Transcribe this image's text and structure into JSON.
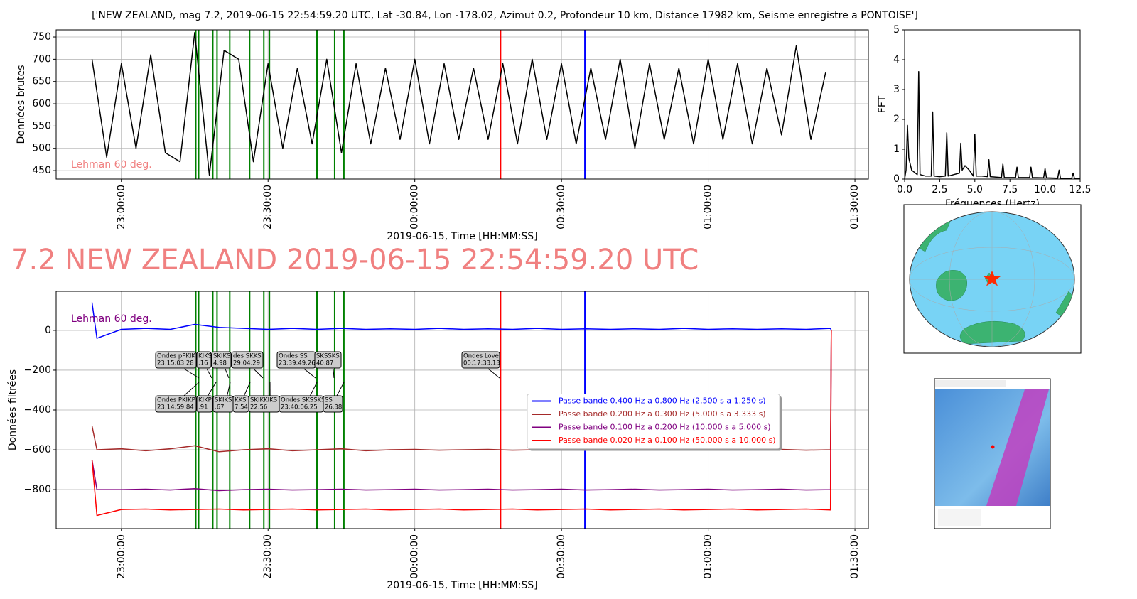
{
  "headline": "7.2 NEW ZEALAND 2019-06-15 22:54:59.20 UTC",
  "chart_data": [
    {
      "type": "line",
      "title": "['NEW ZEALAND, mag 7.2, 2019-06-15 22:54:59.20 UTC, Lat -30.84, Lon -178.02, Azimut 0.2, Profondeur 10 km, Distance 17982 km, Seisme enregistre a PONTOISE']",
      "x_label": "2019-06-15, Time [HH:MM:SS]",
      "y_label": "Données brutes",
      "note": "Lehman 60 deg.",
      "note_color": "#f08080",
      "x": [
        "22:54:00",
        "22:57:00",
        "23:00:00",
        "23:03:00",
        "23:06:00",
        "23:09:00",
        "23:12:00",
        "23:15:00",
        "23:18:00",
        "23:21:00",
        "23:24:00",
        "23:27:00",
        "23:30:00",
        "23:33:00",
        "23:36:00",
        "23:39:00",
        "23:42:00",
        "23:45:00",
        "23:48:00",
        "23:51:00",
        "23:54:00",
        "23:57:00",
        "00:00:00",
        "00:03:00",
        "00:06:00",
        "00:09:00",
        "00:12:00",
        "00:15:00",
        "00:18:00",
        "00:21:00",
        "00:24:00",
        "00:27:00",
        "00:30:00",
        "00:33:00",
        "00:36:00",
        "00:39:00",
        "00:42:00",
        "00:45:00",
        "00:48:00",
        "00:51:00",
        "00:54:00",
        "00:57:00",
        "01:00:00",
        "01:03:00",
        "01:06:00",
        "01:09:00",
        "01:12:00",
        "01:15:00",
        "01:18:00",
        "01:21:00",
        "01:24:00"
      ],
      "values": [
        700,
        480,
        690,
        500,
        710,
        490,
        470,
        760,
        440,
        720,
        700,
        470,
        690,
        500,
        680,
        510,
        700,
        490,
        690,
        510,
        680,
        520,
        700,
        510,
        690,
        520,
        680,
        520,
        690,
        510,
        700,
        520,
        690,
        510,
        680,
        520,
        700,
        500,
        690,
        520,
        680,
        510,
        700,
        520,
        690,
        510,
        680,
        530,
        730,
        520,
        670
      ],
      "color": "#000000",
      "xlim": [
        "22:46:40",
        "01:32:45"
      ],
      "xticks": [
        "23:00:00",
        "23:30:00",
        "00:00:00",
        "00:30:00",
        "01:00:00",
        "01:30:00"
      ],
      "xtick_rotation": 90,
      "ylim": [
        431,
        766
      ],
      "yticks": [
        450,
        500,
        550,
        600,
        650,
        700,
        750
      ],
      "grid": true,
      "markers": [
        {
          "x": "23:15:13",
          "color": "#008000"
        },
        {
          "x": "23:15:48",
          "color": "#008000"
        },
        {
          "x": "23:18:42",
          "color": "#008000"
        },
        {
          "x": "23:19:34",
          "color": "#008000"
        },
        {
          "x": "23:22:10",
          "color": "#008000"
        },
        {
          "x": "23:26:14",
          "color": "#008000"
        },
        {
          "x": "23:29:08",
          "color": "#008000"
        },
        {
          "x": "23:30:17",
          "color": "#008000"
        },
        {
          "x": "23:39:51",
          "color": "#008000"
        },
        {
          "x": "23:40:08",
          "color": "#008000"
        },
        {
          "x": "23:43:37",
          "color": "#008000"
        },
        {
          "x": "23:45:30",
          "color": "#008000"
        },
        {
          "x": "00:17:32",
          "color": "#ff0000"
        },
        {
          "x": "00:34:47",
          "color": "#0000ff"
        }
      ]
    },
    {
      "type": "line",
      "x_label": "Fréquences (Hertz)",
      "y_label": "FFT",
      "x": [
        0,
        0.1,
        0.2,
        0.3,
        0.5,
        0.9,
        1.0,
        1.1,
        1.5,
        1.9,
        2.0,
        2.1,
        2.5,
        2.9,
        3.0,
        3.1,
        3.5,
        3.9,
        4.0,
        4.1,
        4.3,
        4.6,
        4.9,
        5.0,
        5.1,
        5.5,
        5.9,
        6.0,
        6.1,
        6.9,
        7.0,
        7.1,
        7.9,
        8.0,
        8.1,
        8.9,
        9.0,
        9.1,
        9.9,
        10.0,
        10.1,
        10.9,
        11.0,
        11.1,
        11.9,
        12.0,
        12.1,
        12.5
      ],
      "values": [
        0,
        0.3,
        1.8,
        0.7,
        0.3,
        0.15,
        3.6,
        0.15,
        0.1,
        0.1,
        2.25,
        0.1,
        0.08,
        0.1,
        1.55,
        0.1,
        0.15,
        0.2,
        1.2,
        0.3,
        0.45,
        0.3,
        0.1,
        1.5,
        0.1,
        0.1,
        0.08,
        0.65,
        0.08,
        0.05,
        0.5,
        0.05,
        0.05,
        0.4,
        0.05,
        0.05,
        0.4,
        0.05,
        0.04,
        0.35,
        0.04,
        0.03,
        0.3,
        0.03,
        0.02,
        0.2,
        0.02,
        0.02
      ],
      "color": "#000000",
      "xlim": [
        0,
        12.5
      ],
      "xticks": [
        {
          "value": 0,
          "label": "0.0"
        },
        {
          "value": 2.5,
          "label": "2.5"
        },
        {
          "value": 5,
          "label": "5.0"
        },
        {
          "value": 7.5,
          "label": "7.5"
        },
        {
          "value": 10,
          "label": "10.0"
        },
        {
          "value": 12.5,
          "label": "12.5"
        }
      ],
      "ylim": [
        0,
        5
      ],
      "yticks": [
        0,
        1,
        2,
        3,
        4,
        5
      ],
      "grid": false
    },
    {
      "type": "line",
      "x_label": "2019-06-15, Time [HH:MM:SS]",
      "y_label": "Données filtrées",
      "note": "Lehman 60 deg.",
      "note_color": "#800080",
      "x": [
        "22:54:00",
        "22:55:00",
        "23:00:00",
        "23:05:00",
        "23:10:00",
        "23:15:00",
        "23:20:00",
        "23:25:00",
        "23:30:00",
        "23:35:00",
        "23:40:00",
        "23:45:00",
        "23:50:00",
        "23:55:00",
        "00:00:00",
        "00:05:00",
        "00:10:00",
        "00:15:00",
        "00:20:00",
        "00:25:00",
        "00:30:00",
        "00:35:00",
        "00:40:00",
        "00:45:00",
        "00:50:00",
        "00:55:00",
        "01:00:00",
        "01:05:00",
        "01:10:00",
        "01:15:00",
        "01:20:00",
        "01:25:00",
        "01:25:10"
      ],
      "series": [
        {
          "name": "Passe bande 0.400 Hz a 0.800 Hz (2.500 s a 1.250 s)",
          "color": "#0000ff",
          "values": [
            140,
            -40,
            5,
            10,
            5,
            30,
            15,
            10,
            5,
            10,
            5,
            10,
            5,
            8,
            5,
            10,
            5,
            8,
            5,
            10,
            5,
            8,
            5,
            8,
            5,
            10,
            5,
            8,
            5,
            8,
            5,
            10,
            0
          ]
        },
        {
          "name": "Passe bande 0.200 Hz a 0.300 Hz (5.000 s a 3.333 s)",
          "color": "#a52a2a",
          "values": [
            -480,
            -600,
            -595,
            -605,
            -595,
            -580,
            -610,
            -600,
            -595,
            -605,
            -600,
            -595,
            -605,
            -600,
            -598,
            -602,
            -600,
            -598,
            -602,
            -600,
            -598,
            -602,
            -600,
            -598,
            -602,
            -600,
            -598,
            -602,
            -600,
            -598,
            -602,
            -600,
            0
          ]
        },
        {
          "name": "Passe bande 0.100 Hz a 0.200 Hz (10.000 s a 5.000 s)",
          "color": "#800080",
          "values": [
            -650,
            -800,
            -800,
            -798,
            -802,
            -795,
            -805,
            -800,
            -798,
            -802,
            -800,
            -798,
            -802,
            -800,
            -798,
            -802,
            -800,
            -798,
            -802,
            -800,
            -798,
            -802,
            -800,
            -798,
            -802,
            -800,
            -798,
            -802,
            -800,
            -798,
            -802,
            -800,
            0
          ]
        },
        {
          "name": "Passe bande 0.020 Hz a 0.100 Hz (50.000 s a 10.000 s)",
          "color": "#ff0000",
          "values": [
            -650,
            -930,
            -900,
            -898,
            -902,
            -900,
            -898,
            -902,
            -900,
            -898,
            -902,
            -900,
            -898,
            -902,
            -900,
            -898,
            -902,
            -900,
            -898,
            -902,
            -900,
            -898,
            -902,
            -900,
            -898,
            -902,
            -900,
            -898,
            -902,
            -900,
            -898,
            -902,
            0
          ]
        }
      ],
      "legend": "center right",
      "xlim": [
        "22:46:40",
        "01:32:45"
      ],
      "xticks": [
        "23:00:00",
        "23:30:00",
        "00:00:00",
        "00:30:00",
        "01:00:00",
        "01:30:00"
      ],
      "xtick_rotation": 90,
      "ylim": [
        -996,
        196
      ],
      "yticks": [
        {
          "value": -800,
          "label": "−800"
        },
        {
          "value": -600,
          "label": "−600"
        },
        {
          "value": -400,
          "label": "−400"
        },
        {
          "value": -200,
          "label": "−200"
        },
        0
      ],
      "grid": true,
      "markers": [
        {
          "x": "23:15:13",
          "color": "#008000"
        },
        {
          "x": "23:15:48",
          "color": "#008000"
        },
        {
          "x": "23:18:42",
          "color": "#008000"
        },
        {
          "x": "23:19:34",
          "color": "#008000"
        },
        {
          "x": "23:22:10",
          "color": "#008000"
        },
        {
          "x": "23:26:14",
          "color": "#008000"
        },
        {
          "x": "23:29:08",
          "color": "#008000"
        },
        {
          "x": "23:30:17",
          "color": "#008000"
        },
        {
          "x": "23:39:51",
          "color": "#008000"
        },
        {
          "x": "23:40:08",
          "color": "#008000"
        },
        {
          "x": "23:43:37",
          "color": "#008000"
        },
        {
          "x": "23:45:30",
          "color": "#008000"
        },
        {
          "x": "00:17:32",
          "color": "#ff0000"
        },
        {
          "x": "00:34:47",
          "color": "#0000ff"
        }
      ],
      "annotations": [
        [
          "Ondes pPKIKP",
          "23:15:03.28"
        ],
        [
          "KIKS",
          ".16"
        ],
        [
          "SKIKS",
          "4.98"
        ],
        [
          "des SKKS",
          "29:04.29"
        ],
        [
          "Ondes SS",
          "23:39:49.26"
        ],
        [
          "SKSSKS",
          "40.87"
        ],
        [
          "Ondes Love",
          "00:17:33.13"
        ],
        [
          "Ondes PKIKP",
          "23:14:59.84"
        ],
        [
          "KIKP",
          ".91"
        ],
        [
          "SKIKS",
          ".67"
        ],
        [
          "KKS",
          "7.54"
        ],
        [
          "SKIKKIKS",
          "22.56"
        ],
        [
          "Ondes SKSSKS",
          "23:40:06.25"
        ],
        [
          "SS",
          "26.38"
        ]
      ]
    }
  ]
}
